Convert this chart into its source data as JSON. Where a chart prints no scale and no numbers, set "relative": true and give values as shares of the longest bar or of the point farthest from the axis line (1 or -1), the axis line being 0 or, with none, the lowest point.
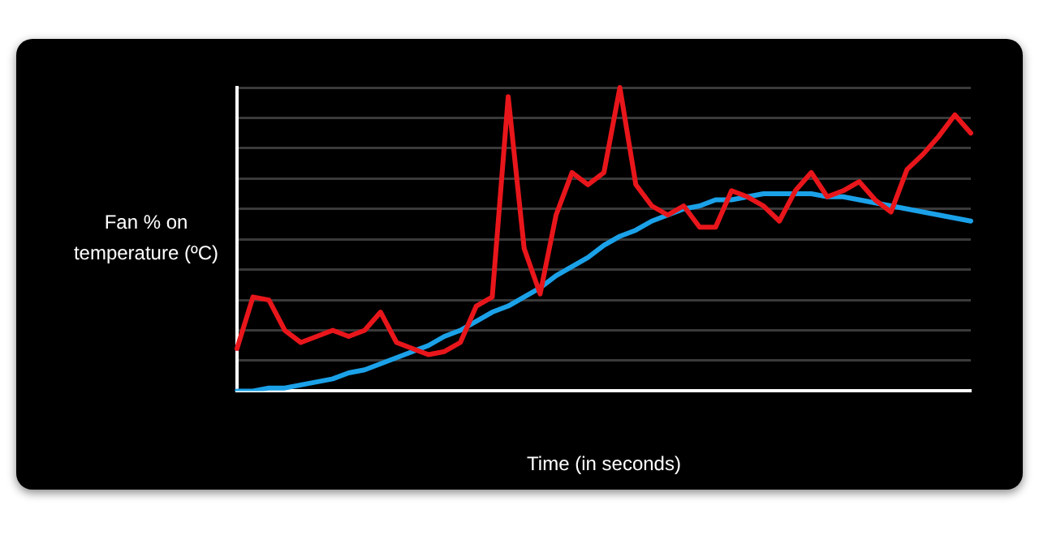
{
  "chart_data": {
    "type": "line",
    "xlabel": "Time (in seconds)",
    "ylabel": "Fan % on temperature (ºC)",
    "relative": true,
    "grid": "y",
    "marker": "none",
    "categories": [
      null,
      null,
      null,
      null,
      null,
      null,
      null,
      null,
      null,
      null,
      null,
      null,
      null,
      null,
      null,
      null,
      null,
      null,
      null,
      null,
      null,
      null,
      null,
      null,
      null,
      null,
      null,
      null,
      null,
      null,
      null,
      null,
      null,
      null,
      null,
      null,
      null,
      null,
      null,
      null,
      null,
      null,
      null,
      null,
      null,
      null,
      null
    ],
    "series": [
      {
        "color": "#e8161b",
        "values": [
          0.14,
          0.31,
          0.3,
          0.2,
          0.16,
          0.18,
          0.2,
          0.18,
          0.2,
          0.26,
          0.16,
          0.14,
          0.12,
          0.13,
          0.16,
          0.28,
          0.31,
          0.97,
          0.47,
          0.32,
          0.58,
          0.72,
          0.68,
          0.72,
          1,
          0.68,
          0.61,
          0.58,
          0.61,
          0.54,
          0.54,
          0.66,
          0.64,
          0.61,
          0.56,
          0.66,
          0.72,
          0.64,
          0.66,
          0.69,
          0.63,
          0.59,
          0.73,
          0.78,
          0.84,
          0.91,
          0.85
        ]
      },
      {
        "color": "#1ba1e8",
        "values": [
          0,
          0,
          0.01,
          0.01,
          0.02,
          0.03,
          0.04,
          0.06,
          0.07,
          0.09,
          0.11,
          0.13,
          0.15,
          0.18,
          0.2,
          0.23,
          0.26,
          0.28,
          0.31,
          0.34,
          0.38,
          0.41,
          0.44,
          0.48,
          0.51,
          0.53,
          0.56,
          0.58,
          0.6,
          0.61,
          0.63,
          0.63,
          0.64,
          0.65,
          0.65,
          0.65,
          0.65,
          0.64,
          0.64,
          0.63,
          0.62,
          0.61,
          0.6,
          0.59,
          0.58,
          0.57,
          0.56
        ]
      }
    ]
  }
}
